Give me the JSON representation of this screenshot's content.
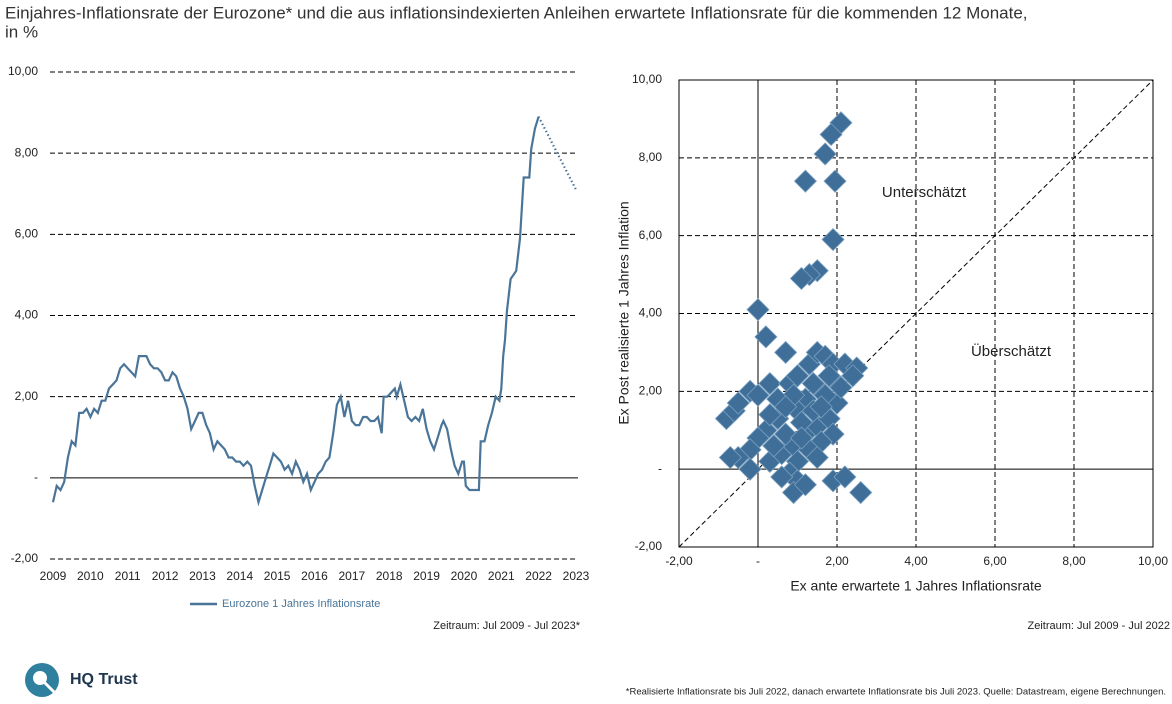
{
  "title": [
    "Einjahres-Inflationsrate der Eurozone* und die aus inflationsindexierten Anleihen erwartete Inflationsrate für die kommenden 12 Monate,",
    "in %"
  ],
  "logo": "HQ Trust",
  "footnote": "*Realisierte Inflationsrate bis Juli 2022, danach erwartete Inflationsrate bis Juli 2023. Quelle: Datastream, eigene Berechnungen.",
  "chart_data": [
    {
      "type": "line",
      "xlim": [
        2009,
        2023
      ],
      "xticks": [
        2009,
        2010,
        2011,
        2012,
        2013,
        2014,
        2015,
        2016,
        2017,
        2018,
        2019,
        2020,
        2021,
        2022,
        2023
      ],
      "ylim": [
        -2,
        10
      ],
      "yticks": [
        {
          "value": 10,
          "label": "10,00"
        },
        {
          "value": 8,
          "label": "8,00"
        },
        {
          "value": 6,
          "label": "6,00"
        },
        {
          "value": 4,
          "label": "4,00"
        },
        {
          "value": 2,
          "label": "2,00"
        },
        {
          "value": 0,
          "label": "-"
        },
        {
          "value": -2,
          "label": "-2,00"
        }
      ],
      "grid": true,
      "note": "Zeitraum: Jul 2009 - Jul 2023*",
      "series": [
        {
          "name": "Eurozone 1 Jahres Inflationsrate",
          "color": "#4a7599",
          "style": "solid",
          "x": [
            2009.0,
            2009.1,
            2009.2,
            2009.3,
            2009.4,
            2009.5,
            2009.6,
            2009.7,
            2009.8,
            2009.9,
            2010.0,
            2010.1,
            2010.2,
            2010.3,
            2010.4,
            2010.5,
            2010.6,
            2010.7,
            2010.8,
            2010.9,
            2011.0,
            2011.1,
            2011.2,
            2011.3,
            2011.4,
            2011.5,
            2011.6,
            2011.7,
            2011.8,
            2011.9,
            2012.0,
            2012.1,
            2012.2,
            2012.3,
            2012.4,
            2012.5,
            2012.6,
            2012.7,
            2012.8,
            2012.9,
            2013.0,
            2013.1,
            2013.2,
            2013.3,
            2013.4,
            2013.5,
            2013.6,
            2013.7,
            2013.8,
            2013.9,
            2014.0,
            2014.1,
            2014.2,
            2014.3,
            2014.4,
            2014.5,
            2014.6,
            2014.7,
            2014.8,
            2014.9,
            2015.0,
            2015.1,
            2015.2,
            2015.3,
            2015.4,
            2015.5,
            2015.6,
            2015.7,
            2015.8,
            2015.9,
            2016.0,
            2016.1,
            2016.2,
            2016.3,
            2016.4,
            2016.5,
            2016.6,
            2016.7,
            2016.8,
            2016.9,
            2017.0,
            2017.1,
            2017.2,
            2017.3,
            2017.4,
            2017.5,
            2017.6,
            2017.7,
            2017.8,
            2017.85,
            2017.95,
            2018.05,
            2018.15,
            2018.2,
            2018.3,
            2018.4,
            2018.5,
            2018.6,
            2018.7,
            2018.8,
            2018.9,
            2019.0,
            2019.1,
            2019.2,
            2019.3,
            2019.4,
            2019.45,
            2019.55,
            2019.65,
            2019.75,
            2019.85,
            2019.95,
            2020.0,
            2020.05,
            2020.15,
            2020.3,
            2020.4,
            2020.45,
            2020.55,
            2020.65,
            2020.75,
            2020.85,
            2020.95,
            2021.0,
            2021.05,
            2021.1,
            2021.15,
            2021.25,
            2021.4,
            2021.5,
            2021.6,
            2021.75,
            2021.8,
            2021.9,
            2022.0
          ],
          "values": [
            -0.6,
            -0.2,
            -0.3,
            -0.1,
            0.5,
            0.9,
            0.8,
            1.6,
            1.6,
            1.7,
            1.5,
            1.7,
            1.6,
            1.9,
            1.9,
            2.2,
            2.3,
            2.4,
            2.7,
            2.8,
            2.7,
            2.6,
            2.5,
            3.0,
            3.0,
            3.0,
            2.8,
            2.7,
            2.7,
            2.6,
            2.4,
            2.4,
            2.6,
            2.5,
            2.2,
            2.0,
            1.7,
            1.2,
            1.4,
            1.6,
            1.6,
            1.3,
            1.1,
            0.7,
            0.9,
            0.8,
            0.7,
            0.5,
            0.5,
            0.4,
            0.4,
            0.3,
            0.4,
            0.3,
            -0.2,
            -0.6,
            -0.3,
            0.0,
            0.3,
            0.6,
            0.5,
            0.4,
            0.2,
            0.3,
            0.1,
            0.4,
            0.2,
            -0.1,
            0.1,
            -0.3,
            -0.1,
            0.1,
            0.2,
            0.4,
            0.5,
            1.1,
            1.8,
            2.0,
            1.5,
            1.9,
            1.4,
            1.3,
            1.3,
            1.5,
            1.5,
            1.4,
            1.4,
            1.5,
            1.1,
            2.0,
            2.0,
            2.1,
            2.2,
            2.0,
            2.3,
            1.9,
            1.5,
            1.4,
            1.5,
            1.4,
            1.7,
            1.2,
            0.9,
            0.7,
            1.0,
            1.3,
            1.4,
            1.2,
            0.7,
            0.3,
            0.1,
            0.4,
            0.4,
            -0.2,
            -0.3,
            -0.3,
            -0.3,
            0.9,
            0.9,
            1.3,
            1.6,
            2.0,
            1.9,
            2.2,
            3.0,
            3.4,
            4.1,
            4.9,
            5.1,
            5.9,
            7.4,
            7.4,
            8.1,
            8.6,
            8.9
          ]
        },
        {
          "color": "#4a7599",
          "style": "dotted",
          "x": [
            2022.0,
            2023.0
          ],
          "values": [
            8.9,
            7.1
          ]
        }
      ]
    },
    {
      "type": "scatter",
      "xlabel": "Ex ante erwartete 1 Jahres Inflationsrate",
      "ylabel": "Ex Post realisierte 1 Jahres Inflation",
      "annotations": [
        "Unterschätzt",
        "Überschätzt"
      ],
      "diagonal": true,
      "grid": true,
      "note": "Zeitraum: Jul 2009 - Jul 2022",
      "xlim": [
        -2,
        10
      ],
      "xticks": [
        {
          "value": -2,
          "label": "-2,00"
        },
        {
          "value": 0,
          "label": "-"
        },
        {
          "value": 2,
          "label": "2,00"
        },
        {
          "value": 4,
          "label": "4,00"
        },
        {
          "value": 6,
          "label": "6,00"
        },
        {
          "value": 8,
          "label": "8,00"
        },
        {
          "value": 10,
          "label": "10,00"
        }
      ],
      "ylim": [
        -2,
        10
      ],
      "yticks": [
        {
          "value": -2,
          "label": "-2,00"
        },
        {
          "value": 0,
          "label": "-"
        },
        {
          "value": 2,
          "label": "2,00"
        },
        {
          "value": 4,
          "label": "4,00"
        },
        {
          "value": 6,
          "label": "6,00"
        },
        {
          "value": 8,
          "label": "8,00"
        },
        {
          "value": 10,
          "label": "10,00"
        }
      ],
      "series": [
        {
          "color": "#3f6f98",
          "x": [
            2.1,
            1.85,
            1.7,
            1.2,
            1.95,
            1.9,
            1.5,
            1.3,
            1.1,
            0,
            0.2,
            0.7,
            -0.8,
            -0.6,
            -0.5,
            -0.2,
            0,
            0.3,
            0.8,
            1.0,
            1.3,
            1.5,
            1.7,
            1.9,
            2.2,
            2.5,
            2.4,
            2.0,
            1.6,
            1.2,
            1.0,
            0.5,
            0.2,
            0,
            -0.2,
            -0.5,
            -0.7,
            -0.2,
            0.3,
            0.6,
            0.9,
            1.2,
            1.5,
            1.8,
            2.0,
            1.9,
            1.6,
            1.3,
            1.0,
            0.8,
            1.0,
            0.9,
            1.2,
            0.6,
            1.5,
            1.9,
            2.2,
            2.6,
            1.7,
            1.4,
            1.1,
            0.7,
            0.4,
            1.8,
            2.1,
            0.9,
            0.5,
            1.4,
            1.1,
            1.6,
            0.3,
            0.7
          ],
          "values": [
            8.9,
            8.6,
            8.1,
            7.4,
            7.4,
            5.9,
            5.1,
            5.0,
            4.9,
            4.1,
            3.4,
            3.0,
            1.3,
            1.5,
            1.7,
            2.0,
            1.9,
            2.2,
            2.2,
            2.4,
            2.7,
            3.0,
            2.9,
            2.7,
            2.7,
            2.6,
            2.4,
            2.2,
            2.0,
            1.8,
            1.5,
            1.3,
            1.0,
            0.8,
            0.5,
            0.3,
            0.3,
            0,
            0.2,
            0.4,
            0.6,
            0.9,
            1.1,
            1.3,
            1.7,
            0.9,
            0.7,
            0.5,
            0.2,
            -0.1,
            -0.3,
            -0.6,
            -0.4,
            -0.2,
            0.3,
            -0.3,
            -0.2,
            -0.6,
            1.9,
            1.5,
            1.2,
            0.9,
            0.6,
            2.4,
            2.1,
            1.9,
            1.8,
            2.2,
            0.8,
            1.6,
            1.4,
            1.6
          ]
        }
      ]
    }
  ]
}
